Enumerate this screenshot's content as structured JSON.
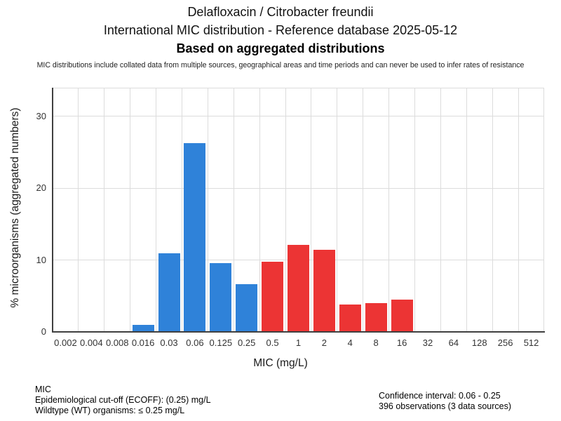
{
  "header": {
    "title_line1": "Delafloxacin / Citrobacter freundii",
    "title_line2": "International MIC distribution - Reference database 2025-05-12",
    "title_line3": "Based on aggregated distributions",
    "disclaimer": "MIC distributions include collated data from multiple sources, geographical areas and time periods and can never be used to infer rates of resistance"
  },
  "chart_data": {
    "type": "bar",
    "title": "Delafloxacin / Citrobacter freundii - International MIC distribution",
    "xlabel": "MIC (mg/L)",
    "ylabel": "% microorganisms (aggregated numbers)",
    "ylim": [
      0,
      34
    ],
    "yticks": [
      0,
      10,
      20,
      30
    ],
    "grid": true,
    "legend_position": "none",
    "categories": [
      "0.002",
      "0.004",
      "0.008",
      "0.016",
      "0.03",
      "0.06",
      "0.125",
      "0.25",
      "0.5",
      "1",
      "2",
      "4",
      "8",
      "16",
      "32",
      "64",
      "128",
      "256",
      "512"
    ],
    "values": [
      0,
      0,
      0,
      1.0,
      10.9,
      26.3,
      9.6,
      6.6,
      9.8,
      12.1,
      11.4,
      3.8,
      4.0,
      4.5,
      0,
      0,
      0,
      0,
      0
    ],
    "bar_colors": [
      "#2f82d9",
      "#2f82d9",
      "#2f82d9",
      "#2f82d9",
      "#2f82d9",
      "#2f82d9",
      "#2f82d9",
      "#2f82d9",
      "#ec3434",
      "#ec3434",
      "#ec3434",
      "#ec3434",
      "#ec3434",
      "#ec3434",
      "#ec3434",
      "#ec3434",
      "#ec3434",
      "#ec3434",
      "#ec3434"
    ],
    "wildtype_color": "#2f82d9",
    "non_wildtype_color": "#ec3434",
    "grid_color": "#dcdcdc",
    "axis_color": "#404040"
  },
  "footer": {
    "left": {
      "line1": "MIC",
      "line2": "Epidemiological cut-off (ECOFF): (0.25) mg/L",
      "line3": "Wildtype (WT) organisms: ≤ 0.25 mg/L"
    },
    "right": {
      "line1": "Confidence interval: 0.06 - 0.25",
      "line2": "396 observations (3 data sources)"
    }
  }
}
